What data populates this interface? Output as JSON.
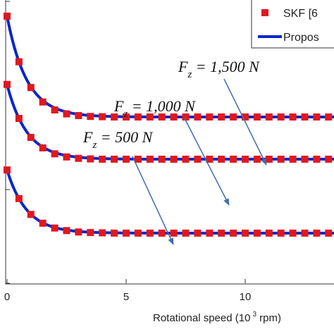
{
  "colors": {
    "marker": "#e0181e",
    "line": "#0a27c8",
    "arrow": "#3f6fa8",
    "axis": "#333333"
  },
  "chart_data": {
    "type": "line",
    "xlabel": "Rotational speed (10 3 rpm)",
    "xlabel_parts": {
      "before": "Rotational speed (10",
      "sup": "3",
      "after": " rpm)"
    },
    "xlim": [
      0,
      14
    ],
    "ylim": [
      0,
      1
    ],
    "x_ticks": [
      0,
      5,
      10
    ],
    "x_tick_labels": [
      "0",
      "5",
      "10"
    ],
    "y_tick_values": [
      0,
      0.5,
      1
    ],
    "legend": {
      "position": "top-right",
      "entries": [
        "SKF [6",
        "Propos"
      ]
    },
    "x": [
      0,
      0.5,
      1,
      1.5,
      2,
      2.5,
      3,
      3.5,
      4,
      4.5,
      5,
      5.5,
      6,
      6.5,
      7,
      7.5,
      8,
      8.5,
      9,
      9.5,
      10,
      10.5,
      11,
      11.5,
      12,
      12.5,
      13,
      13.5,
      14
    ],
    "series": [
      {
        "load": "1,500 N",
        "y_start": 0.943,
        "y_end": 0.587,
        "values": [
          0.943,
          0.782,
          0.691,
          0.64,
          0.612,
          0.598,
          0.592,
          0.589,
          0.588,
          0.587,
          0.587,
          0.587,
          0.587,
          0.587,
          0.587,
          0.587,
          0.587,
          0.587,
          0.587,
          0.587,
          0.587,
          0.587,
          0.587,
          0.587,
          0.587,
          0.587,
          0.587,
          0.587,
          0.587
        ]
      },
      {
        "load": "1,000 N",
        "y_start": 0.702,
        "y_end": 0.438,
        "values": [
          0.702,
          0.582,
          0.515,
          0.478,
          0.457,
          0.446,
          0.441,
          0.439,
          0.438,
          0.438,
          0.438,
          0.438,
          0.438,
          0.438,
          0.438,
          0.438,
          0.438,
          0.438,
          0.438,
          0.438,
          0.438,
          0.438,
          0.438,
          0.438,
          0.438,
          0.438,
          0.438,
          0.438,
          0.438
        ]
      },
      {
        "load": "500 N",
        "y_start": 0.4,
        "y_end": 0.177,
        "values": [
          0.4,
          0.299,
          0.243,
          0.212,
          0.195,
          0.186,
          0.181,
          0.179,
          0.178,
          0.177,
          0.177,
          0.177,
          0.177,
          0.177,
          0.177,
          0.177,
          0.177,
          0.177,
          0.177,
          0.177,
          0.177,
          0.177,
          0.177,
          0.177,
          0.177,
          0.177,
          0.177,
          0.177,
          0.177
        ]
      }
    ],
    "annotations": [
      {
        "var": "F",
        "sub": "z",
        "text": " = 1,500 N",
        "points_to": "1,500 N"
      },
      {
        "var": "F",
        "sub": "z",
        "text": " = 1,000 N",
        "points_to": "1,000 N"
      },
      {
        "var": "F",
        "sub": "z",
        "text": " = 500 N",
        "points_to": "500 N"
      }
    ]
  }
}
